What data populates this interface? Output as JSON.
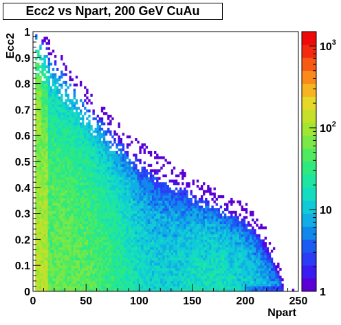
{
  "chart_data": {
    "type": "heatmap",
    "title": "Ecc2 vs Npart, 200 GeV CuAu",
    "xlabel": "Npart",
    "ylabel": "Ecc2",
    "xlim": [
      0,
      250
    ],
    "ylim": [
      0,
      1
    ],
    "x_ticks": [
      "0",
      "50",
      "100",
      "150",
      "200",
      "250"
    ],
    "y_ticks": [
      "0",
      "0.1",
      "0.2",
      "0.3",
      "0.4",
      "0.5",
      "0.6",
      "0.7",
      "0.8",
      "0.9",
      "1"
    ],
    "z_scale": "log",
    "zlim": [
      1,
      1500
    ],
    "colorbar_ticks": [
      {
        "value": 1,
        "base": "1",
        "exp": ""
      },
      {
        "value": 10,
        "base": "10",
        "exp": ""
      },
      {
        "value": 100,
        "base": "10",
        "exp": "2"
      },
      {
        "value": 1000,
        "base": "10",
        "exp": "3"
      }
    ],
    "colormap": [
      "#5a00d6",
      "#3a1cf2",
      "#2a3cf6",
      "#1a5cf2",
      "#1288ec",
      "#10aee4",
      "#10cad8",
      "#14dcc0",
      "#1ee6a0",
      "#2ee880",
      "#50ea60",
      "#7ae846",
      "#a2e634",
      "#c6e02a",
      "#e6d828",
      "#f6b422",
      "#fa8a1c",
      "#f85a16",
      "#f42a10",
      "#ee0a0a"
    ],
    "density_envelope": [
      {
        "x": 0,
        "y": 1.0
      },
      {
        "x": 25,
        "y": 0.88
      },
      {
        "x": 50,
        "y": 0.74
      },
      {
        "x": 75,
        "y": 0.63
      },
      {
        "x": 100,
        "y": 0.54
      },
      {
        "x": 125,
        "y": 0.47
      },
      {
        "x": 150,
        "y": 0.4
      },
      {
        "x": 175,
        "y": 0.35
      },
      {
        "x": 200,
        "y": 0.3
      },
      {
        "x": 210,
        "y": 0.26
      },
      {
        "x": 220,
        "y": 0.2
      },
      {
        "x": 230,
        "y": 0.1
      },
      {
        "x": 235,
        "y": 0.03
      }
    ]
  }
}
